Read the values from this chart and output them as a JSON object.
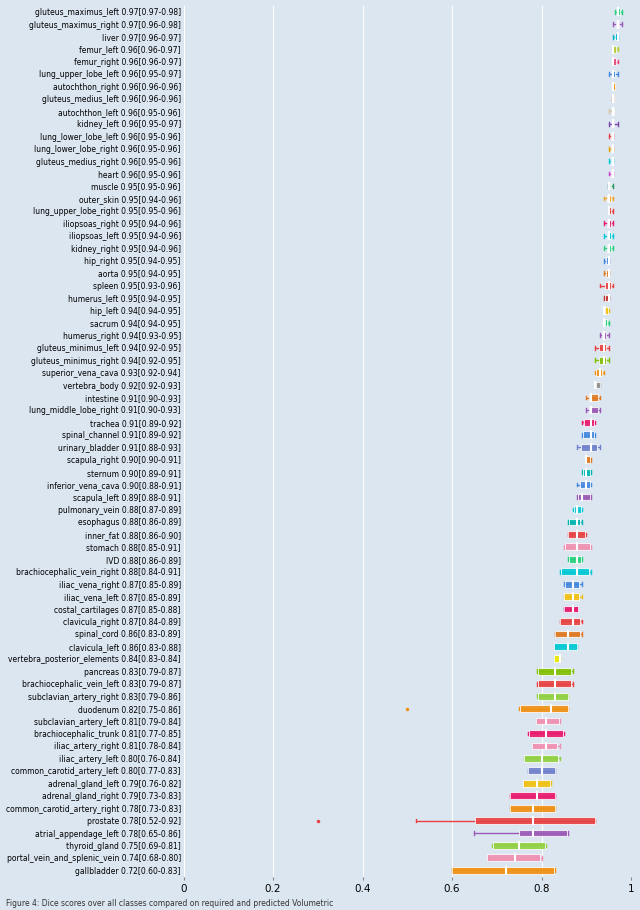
{
  "labels": [
    "gluteus_maximus_left 0.97[0.97-0.98]",
    "gluteus_maximus_right 0.97[0.96-0.98]",
    "liver 0.97[0.96-0.97]",
    "femur_left 0.96[0.96-0.97]",
    "femur_right 0.96[0.96-0.97]",
    "lung_upper_lobe_left 0.96[0.95-0.97]",
    "autochthon_right 0.96[0.96-0.96]",
    "gluteus_medius_left 0.96[0.96-0.96]",
    "autochthon_left 0.96[0.95-0.96]",
    "kidney_left 0.96[0.95-0.97]",
    "lung_lower_lobe_left 0.96[0.95-0.96]",
    "lung_lower_lobe_right 0.96[0.95-0.96]",
    "gluteus_medius_right 0.96[0.95-0.96]",
    "heart 0.96[0.95-0.96]",
    "muscle 0.95[0.95-0.96]",
    "outer_skin 0.95[0.94-0.96]",
    "lung_upper_lobe_right 0.95[0.95-0.96]",
    "iliopsoas_right 0.95[0.94-0.96]",
    "iliopsoas_left 0.95[0.94-0.96]",
    "kidney_right 0.95[0.94-0.96]",
    "hip_right 0.95[0.94-0.95]",
    "aorta 0.95[0.94-0.95]",
    "spleen 0.95[0.93-0.96]",
    "humerus_left 0.95[0.94-0.95]",
    "hip_left 0.94[0.94-0.95]",
    "sacrum 0.94[0.94-0.95]",
    "humerus_right 0.94[0.93-0.95]",
    "gluteus_minimus_left 0.94[0.92-0.95]",
    "gluteus_minimus_right 0.94[0.92-0.95]",
    "superior_vena_cava 0.93[0.92-0.94]",
    "vertebra_body 0.92[0.92-0.93]",
    "intestine 0.91[0.90-0.93]",
    "lung_middle_lobe_right 0.91[0.90-0.93]",
    "trachea 0.91[0.89-0.92]",
    "spinal_channel 0.91[0.89-0.92]",
    "urinary_bladder 0.91[0.88-0.93]",
    "scapula_right 0.90[0.90-0.91]",
    "sternum 0.90[0.89-0.91]",
    "inferior_vena_cava 0.90[0.88-0.91]",
    "scapula_left 0.89[0.88-0.91]",
    "pulmonary_vein 0.88[0.87-0.89]",
    "esophagus 0.88[0.86-0.89]",
    "inner_fat 0.88[0.86-0.90]",
    "stomach 0.88[0.85-0.91]",
    "IVD 0.88[0.86-0.89]",
    "brachiocephalic_vein_right 0.88[0.84-0.91]",
    "iliac_vena_right 0.87[0.85-0.89]",
    "iliac_vena_left 0.87[0.85-0.89]",
    "costal_cartilages 0.87[0.85-0.88]",
    "clavicula_right 0.87[0.84-0.89]",
    "spinal_cord 0.86[0.83-0.89]",
    "clavicula_left 0.86[0.83-0.88]",
    "vertebra_posterior_elements 0.84[0.83-0.84]",
    "pancreas 0.83[0.79-0.87]",
    "brachiocephalic_vein_left 0.83[0.79-0.87]",
    "subclavian_artery_right 0.83[0.79-0.86]",
    "duodenum 0.82[0.75-0.86]",
    "subclavian_artery_left 0.81[0.79-0.84]",
    "brachiocephalic_trunk 0.81[0.77-0.85]",
    "iliac_artery_right 0.81[0.78-0.84]",
    "iliac_artery_left 0.80[0.76-0.84]",
    "common_carotid_artery_left 0.80[0.77-0.83]",
    "adrenal_gland_left 0.79[0.76-0.82]",
    "adrenal_gland_right 0.79[0.73-0.83]",
    "common_carotid_artery_right 0.78[0.73-0.83]",
    "prostate 0.78[0.52-0.92]",
    "atrial_appendage_left 0.78[0.65-0.86]",
    "thyroid_gland 0.75[0.69-0.81]",
    "portal_vein_and_splenic_vein 0.74[0.68-0.80]",
    "gallbladder 0.72[0.60-0.83]"
  ],
  "medians": [
    0.97,
    0.97,
    0.97,
    0.96,
    0.96,
    0.96,
    0.96,
    0.96,
    0.96,
    0.96,
    0.96,
    0.96,
    0.96,
    0.96,
    0.95,
    0.95,
    0.95,
    0.95,
    0.95,
    0.95,
    0.95,
    0.95,
    0.95,
    0.95,
    0.94,
    0.94,
    0.94,
    0.94,
    0.94,
    0.93,
    0.92,
    0.91,
    0.91,
    0.91,
    0.91,
    0.91,
    0.9,
    0.9,
    0.9,
    0.89,
    0.88,
    0.88,
    0.88,
    0.88,
    0.88,
    0.88,
    0.87,
    0.87,
    0.87,
    0.87,
    0.86,
    0.86,
    0.84,
    0.83,
    0.83,
    0.83,
    0.82,
    0.81,
    0.81,
    0.81,
    0.8,
    0.8,
    0.79,
    0.79,
    0.78,
    0.78,
    0.78,
    0.75,
    0.74,
    0.72
  ],
  "q1": [
    0.97,
    0.966,
    0.965,
    0.96,
    0.96,
    0.957,
    0.96,
    0.96,
    0.957,
    0.957,
    0.955,
    0.955,
    0.954,
    0.954,
    0.952,
    0.947,
    0.951,
    0.947,
    0.947,
    0.946,
    0.944,
    0.943,
    0.941,
    0.942,
    0.942,
    0.941,
    0.934,
    0.929,
    0.928,
    0.922,
    0.921,
    0.905,
    0.905,
    0.894,
    0.892,
    0.887,
    0.899,
    0.892,
    0.885,
    0.882,
    0.873,
    0.861,
    0.859,
    0.852,
    0.861,
    0.843,
    0.852,
    0.851,
    0.851,
    0.842,
    0.83,
    0.828,
    0.828,
    0.793,
    0.792,
    0.792,
    0.752,
    0.788,
    0.772,
    0.778,
    0.761,
    0.769,
    0.759,
    0.729,
    0.729,
    0.651,
    0.749,
    0.691,
    0.677,
    0.6
  ],
  "q3": [
    0.975,
    0.972,
    0.97,
    0.967,
    0.967,
    0.964,
    0.963,
    0.962,
    0.962,
    0.962,
    0.96,
    0.96,
    0.959,
    0.959,
    0.956,
    0.955,
    0.954,
    0.954,
    0.954,
    0.954,
    0.951,
    0.95,
    0.954,
    0.95,
    0.948,
    0.946,
    0.944,
    0.944,
    0.943,
    0.936,
    0.931,
    0.925,
    0.925,
    0.917,
    0.916,
    0.924,
    0.909,
    0.909,
    0.907,
    0.907,
    0.888,
    0.886,
    0.897,
    0.907,
    0.887,
    0.905,
    0.884,
    0.884,
    0.881,
    0.885,
    0.885,
    0.879,
    0.841,
    0.865,
    0.865,
    0.859,
    0.858,
    0.838,
    0.848,
    0.835,
    0.837,
    0.829,
    0.819,
    0.829,
    0.829,
    0.919,
    0.857,
    0.807,
    0.797,
    0.827
  ],
  "whisker_low": [
    0.965,
    0.96,
    0.96,
    0.96,
    0.96,
    0.95,
    0.96,
    0.958,
    0.95,
    0.95,
    0.95,
    0.95,
    0.95,
    0.95,
    0.948,
    0.94,
    0.95,
    0.94,
    0.94,
    0.94,
    0.94,
    0.94,
    0.93,
    0.94,
    0.94,
    0.94,
    0.93,
    0.92,
    0.92,
    0.92,
    0.92,
    0.9,
    0.9,
    0.89,
    0.89,
    0.88,
    0.9,
    0.89,
    0.88,
    0.88,
    0.87,
    0.86,
    0.86,
    0.85,
    0.86,
    0.84,
    0.85,
    0.85,
    0.85,
    0.84,
    0.83,
    0.83,
    0.83,
    0.79,
    0.79,
    0.79,
    0.75,
    0.79,
    0.77,
    0.78,
    0.76,
    0.77,
    0.76,
    0.73,
    0.73,
    0.52,
    0.65,
    0.69,
    0.68,
    0.6
  ],
  "whisker_high": [
    0.98,
    0.98,
    0.97,
    0.97,
    0.97,
    0.97,
    0.96,
    0.96,
    0.96,
    0.97,
    0.96,
    0.96,
    0.96,
    0.96,
    0.96,
    0.96,
    0.96,
    0.96,
    0.96,
    0.96,
    0.95,
    0.95,
    0.96,
    0.95,
    0.95,
    0.95,
    0.95,
    0.95,
    0.95,
    0.94,
    0.93,
    0.93,
    0.93,
    0.92,
    0.92,
    0.93,
    0.91,
    0.91,
    0.91,
    0.91,
    0.89,
    0.89,
    0.9,
    0.91,
    0.89,
    0.91,
    0.89,
    0.89,
    0.88,
    0.89,
    0.89,
    0.88,
    0.84,
    0.87,
    0.87,
    0.86,
    0.86,
    0.84,
    0.85,
    0.84,
    0.84,
    0.83,
    0.82,
    0.83,
    0.83,
    0.92,
    0.86,
    0.81,
    0.8,
    0.83
  ],
  "outliers_low": [
    null,
    null,
    null,
    null,
    null,
    null,
    null,
    null,
    null,
    null,
    null,
    null,
    null,
    null,
    null,
    null,
    null,
    null,
    null,
    null,
    null,
    null,
    null,
    null,
    null,
    null,
    null,
    null,
    null,
    null,
    null,
    null,
    null,
    null,
    null,
    null,
    null,
    null,
    null,
    null,
    null,
    null,
    null,
    null,
    null,
    null,
    null,
    null,
    null,
    null,
    null,
    null,
    null,
    null,
    null,
    null,
    0.5,
    null,
    null,
    null,
    null,
    null,
    null,
    null,
    null,
    0.3,
    null,
    null,
    null,
    null
  ],
  "outliers_high": [
    null,
    null,
    null,
    null,
    null,
    null,
    null,
    null,
    null,
    null,
    null,
    null,
    null,
    null,
    null,
    null,
    null,
    null,
    null,
    null,
    null,
    null,
    null,
    null,
    null,
    null,
    null,
    null,
    null,
    null,
    null,
    null,
    null,
    null,
    null,
    null,
    null,
    null,
    null,
    null,
    null,
    null,
    null,
    null,
    null,
    null,
    null,
    null,
    null,
    null,
    null,
    null,
    null,
    null,
    null,
    null,
    null,
    null,
    null,
    null,
    null,
    null,
    null,
    null,
    null,
    null,
    null,
    null,
    null,
    null
  ],
  "colors": [
    "#26d07c",
    "#9b59b6",
    "#00b4c8",
    "#b5cc2e",
    "#e8487c",
    "#4488dd",
    "#f09010",
    "#e07820",
    "#d4c4a0",
    "#7e44ad",
    "#e84040",
    "#e8a000",
    "#00c8d4",
    "#cc44cc",
    "#2d9960",
    "#f5a020",
    "#e84040",
    "#e8186c",
    "#00c8d4",
    "#26d07c",
    "#4488dd",
    "#e07820",
    "#e84040",
    "#c0302b",
    "#f0c010",
    "#26d07c",
    "#9b59b6",
    "#e84040",
    "#80c000",
    "#f09010",
    "#909090",
    "#e07820",
    "#9b59b6",
    "#e8186c",
    "#4488dd",
    "#7080cc",
    "#e07820",
    "#00b4b0",
    "#4488dd",
    "#9b59b6",
    "#00c8d4",
    "#00b4b0",
    "#e84040",
    "#f090b0",
    "#26d07c",
    "#00c8d4",
    "#4488dd",
    "#f0c010",
    "#e8186c",
    "#e84040",
    "#e07820",
    "#00c8d4",
    "#e8e800",
    "#80c000",
    "#e84040",
    "#90d040",
    "#f09010",
    "#f090b0",
    "#e8186c",
    "#f090b0",
    "#90d040",
    "#7080cc",
    "#f0c010",
    "#e8186c",
    "#f09010",
    "#e84040",
    "#9b59b6",
    "#90d040",
    "#f090b0",
    "#f09010"
  ],
  "background_color": "#dce6f1",
  "fig_width": 6.4,
  "fig_height": 9.1,
  "label_fontsize": 5.5,
  "xtick_fontsize": 7.5
}
